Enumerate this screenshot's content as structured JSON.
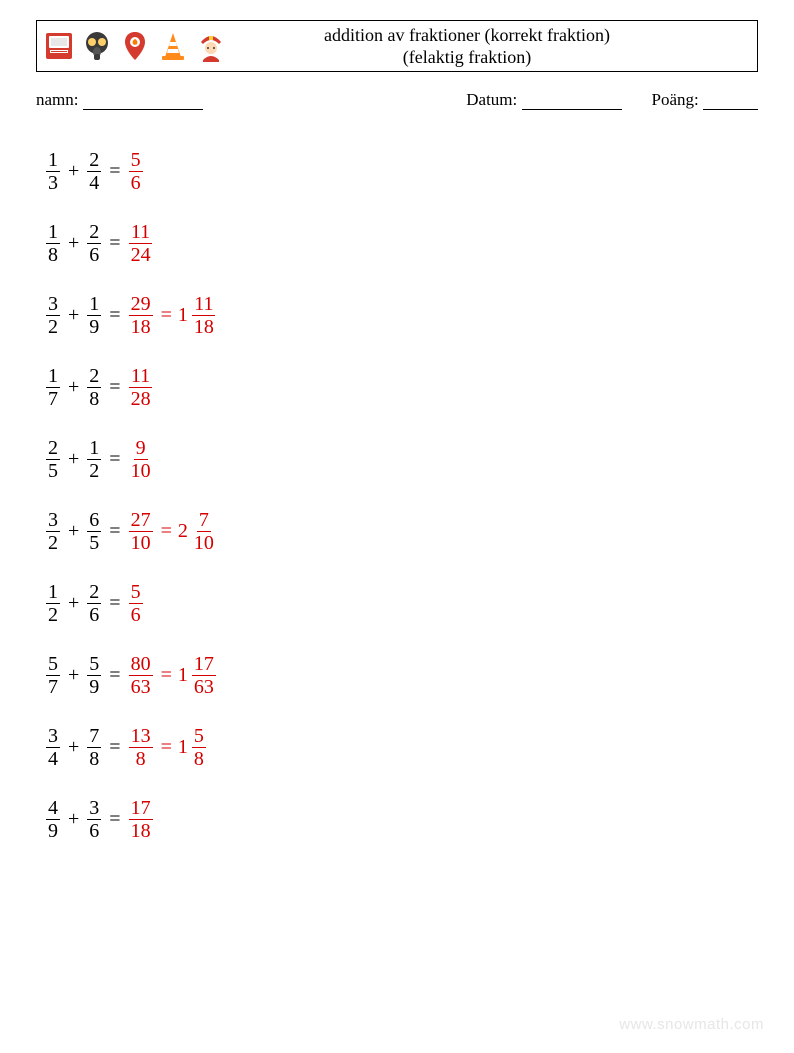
{
  "header": {
    "title_line1": "addition av fraktioner (korrekt fraktion)",
    "title_line2": "(felaktig fraktion)"
  },
  "meta": {
    "name_label": "namn:",
    "name_underline_width": 120,
    "date_label": "Datum:",
    "date_underline_width": 100,
    "score_label": "Poäng:",
    "score_underline_width": 55
  },
  "colors": {
    "answer": "#d40000",
    "text": "#000000",
    "watermark": "#e6e6e6"
  },
  "icons": {
    "fire_alarm_label": "fire-alarm-icon",
    "gas_mask_label": "gas-mask-icon",
    "location_label": "location-pin-icon",
    "cone_label": "traffic-cone-icon",
    "firefighter_label": "firefighter-icon"
  },
  "problems": [
    {
      "a": {
        "n": "1",
        "d": "3"
      },
      "b": {
        "n": "2",
        "d": "4"
      },
      "ans": {
        "n": "5",
        "d": "6"
      }
    },
    {
      "a": {
        "n": "1",
        "d": "8"
      },
      "b": {
        "n": "2",
        "d": "6"
      },
      "ans": {
        "n": "11",
        "d": "24"
      }
    },
    {
      "a": {
        "n": "3",
        "d": "2"
      },
      "b": {
        "n": "1",
        "d": "9"
      },
      "ans": {
        "n": "29",
        "d": "18"
      },
      "mixed": {
        "w": "1",
        "n": "11",
        "d": "18"
      }
    },
    {
      "a": {
        "n": "1",
        "d": "7"
      },
      "b": {
        "n": "2",
        "d": "8"
      },
      "ans": {
        "n": "11",
        "d": "28"
      }
    },
    {
      "a": {
        "n": "2",
        "d": "5"
      },
      "b": {
        "n": "1",
        "d": "2"
      },
      "ans": {
        "n": "9",
        "d": "10"
      }
    },
    {
      "a": {
        "n": "3",
        "d": "2"
      },
      "b": {
        "n": "6",
        "d": "5"
      },
      "ans": {
        "n": "27",
        "d": "10"
      },
      "mixed": {
        "w": "2",
        "n": "7",
        "d": "10"
      }
    },
    {
      "a": {
        "n": "1",
        "d": "2"
      },
      "b": {
        "n": "2",
        "d": "6"
      },
      "ans": {
        "n": "5",
        "d": "6"
      }
    },
    {
      "a": {
        "n": "5",
        "d": "7"
      },
      "b": {
        "n": "5",
        "d": "9"
      },
      "ans": {
        "n": "80",
        "d": "63"
      },
      "mixed": {
        "w": "1",
        "n": "17",
        "d": "63"
      }
    },
    {
      "a": {
        "n": "3",
        "d": "4"
      },
      "b": {
        "n": "7",
        "d": "8"
      },
      "ans": {
        "n": "13",
        "d": "8"
      },
      "mixed": {
        "w": "1",
        "n": "5",
        "d": "8"
      }
    },
    {
      "a": {
        "n": "4",
        "d": "9"
      },
      "b": {
        "n": "3",
        "d": "6"
      },
      "ans": {
        "n": "17",
        "d": "18"
      }
    }
  ],
  "watermark": "www.snowmath.com",
  "symbols": {
    "plus": "+",
    "equals": "="
  }
}
